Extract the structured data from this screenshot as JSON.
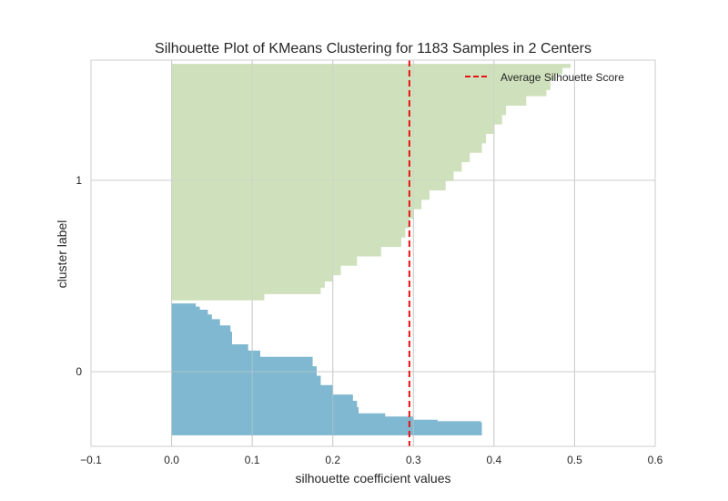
{
  "chart_data": {
    "type": "bar",
    "title": "Silhouette Plot of KMeans Clustering for 1183 Samples in 2 Centers",
    "xlabel": "silhouette coefficient values",
    "ylabel": "cluster label",
    "xlim": [
      -0.1,
      0.6
    ],
    "xticks": [
      "−0.1",
      "0.0",
      "0.1",
      "0.2",
      "0.3",
      "0.4",
      "0.5",
      "0.6"
    ],
    "yticks": [
      "0",
      "1"
    ],
    "grid": true,
    "legend": {
      "position": "top-right",
      "entries": [
        "Average Silhouette Score"
      ]
    },
    "average_silhouette_score": 0.295,
    "colors": {
      "cluster_0": "#7fb8d0",
      "cluster_1": "#cfe1bc",
      "average_line": "#e81010",
      "grid": "#cccccc"
    },
    "series": [
      {
        "cluster": "0",
        "sample_index_range": [
          0,
          420
        ],
        "profile_points": [
          [
            0,
            0.385
          ],
          [
            40,
            0.384
          ],
          [
            45,
            0.33
          ],
          [
            50,
            0.3
          ],
          [
            60,
            0.265
          ],
          [
            70,
            0.232
          ],
          [
            90,
            0.23
          ],
          [
            110,
            0.225
          ],
          [
            130,
            0.2
          ],
          [
            160,
            0.185
          ],
          [
            190,
            0.18
          ],
          [
            220,
            0.175
          ],
          [
            250,
            0.11
          ],
          [
            270,
            0.095
          ],
          [
            290,
            0.075
          ],
          [
            330,
            0.073
          ],
          [
            350,
            0.06
          ],
          [
            370,
            0.05
          ],
          [
            385,
            0.045
          ],
          [
            400,
            0.035
          ],
          [
            410,
            0.03
          ],
          [
            420,
            0.028
          ]
        ]
      },
      {
        "cluster": "1",
        "sample_index_range": [
          430,
          1183
        ],
        "profile_points": [
          [
            430,
            0.115
          ],
          [
            450,
            0.185
          ],
          [
            470,
            0.19
          ],
          [
            490,
            0.2
          ],
          [
            510,
            0.21
          ],
          [
            540,
            0.23
          ],
          [
            570,
            0.26
          ],
          [
            600,
            0.285
          ],
          [
            630,
            0.29
          ],
          [
            660,
            0.295
          ],
          [
            690,
            0.3
          ],
          [
            720,
            0.31
          ],
          [
            750,
            0.32
          ],
          [
            780,
            0.34
          ],
          [
            810,
            0.35
          ],
          [
            840,
            0.36
          ],
          [
            870,
            0.37
          ],
          [
            900,
            0.385
          ],
          [
            930,
            0.39
          ],
          [
            960,
            0.4
          ],
          [
            990,
            0.41
          ],
          [
            1020,
            0.415
          ],
          [
            1050,
            0.44
          ],
          [
            1080,
            0.465
          ],
          [
            1100,
            0.47
          ],
          [
            1130,
            0.475
          ],
          [
            1150,
            0.485
          ],
          [
            1170,
            0.495
          ],
          [
            1183,
            0.5
          ]
        ]
      }
    ]
  }
}
